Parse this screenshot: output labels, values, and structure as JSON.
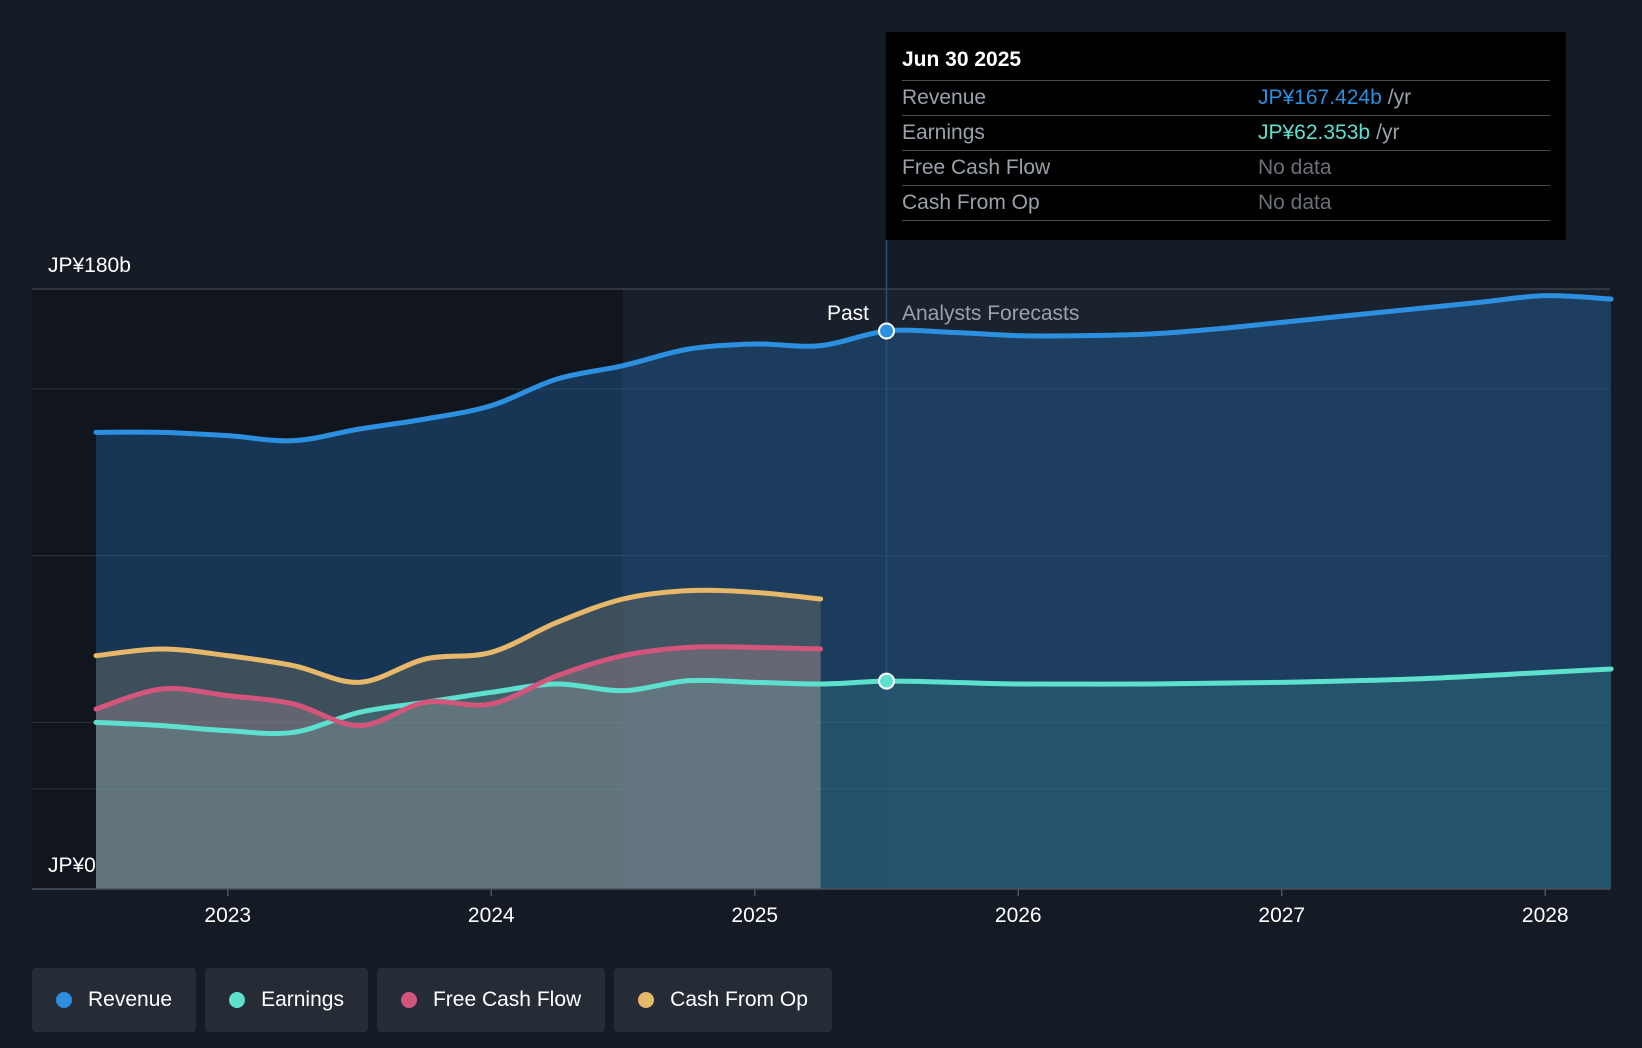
{
  "chart_data": {
    "type": "area",
    "x_range": [
      2022.5,
      2028.25
    ],
    "ylim": [
      0,
      180
    ],
    "y_axis_labels": {
      "top": "JP¥180b",
      "bottom": "JP¥0"
    },
    "x_ticks": [
      {
        "value": 2023,
        "label": "2023"
      },
      {
        "value": 2024,
        "label": "2024"
      },
      {
        "value": 2025,
        "label": "2025"
      },
      {
        "value": 2026,
        "label": "2026"
      },
      {
        "value": 2027,
        "label": "2027"
      },
      {
        "value": 2028,
        "label": "2028"
      }
    ],
    "gridlines": [
      30,
      50,
      100,
      150
    ],
    "past_label": "Past",
    "forecast_label": "Analysts Forecasts",
    "divider_x": 2025.5,
    "highlight_start_x": 2024.5,
    "series": [
      {
        "name": "Revenue",
        "color": "#2d8fe0",
        "values": [
          [
            2022.5,
            137
          ],
          [
            2022.75,
            137
          ],
          [
            2023.0,
            136
          ],
          [
            2023.25,
            134.5
          ],
          [
            2023.5,
            138
          ],
          [
            2023.75,
            141
          ],
          [
            2024.0,
            145
          ],
          [
            2024.25,
            153
          ],
          [
            2024.5,
            157
          ],
          [
            2024.75,
            162
          ],
          [
            2025.0,
            163.5
          ],
          [
            2025.25,
            163
          ],
          [
            2025.5,
            167.4
          ],
          [
            2025.75,
            167
          ],
          [
            2026.0,
            166
          ],
          [
            2026.25,
            166
          ],
          [
            2026.5,
            166.5
          ],
          [
            2026.75,
            168
          ],
          [
            2027.0,
            170
          ],
          [
            2027.25,
            172
          ],
          [
            2027.5,
            174
          ],
          [
            2027.75,
            176
          ],
          [
            2028.0,
            178
          ],
          [
            2028.25,
            177
          ]
        ]
      },
      {
        "name": "Earnings",
        "color": "#5ee0cf",
        "values": [
          [
            2022.5,
            50
          ],
          [
            2022.75,
            49
          ],
          [
            2023.0,
            47.5
          ],
          [
            2023.25,
            47
          ],
          [
            2023.5,
            53
          ],
          [
            2023.75,
            56
          ],
          [
            2024.0,
            59
          ],
          [
            2024.25,
            61.5
          ],
          [
            2024.5,
            59.5
          ],
          [
            2024.75,
            62.5
          ],
          [
            2025.0,
            62
          ],
          [
            2025.25,
            61.5
          ],
          [
            2025.5,
            62.35
          ],
          [
            2025.75,
            62
          ],
          [
            2026.0,
            61.5
          ],
          [
            2026.5,
            61.5
          ],
          [
            2027.0,
            62
          ],
          [
            2027.5,
            63
          ],
          [
            2028.0,
            65
          ],
          [
            2028.25,
            66
          ]
        ]
      },
      {
        "name": "Free Cash Flow",
        "color": "#d4557c",
        "values": [
          [
            2022.5,
            54
          ],
          [
            2022.75,
            60
          ],
          [
            2023.0,
            58
          ],
          [
            2023.25,
            55.5
          ],
          [
            2023.5,
            49
          ],
          [
            2023.75,
            56
          ],
          [
            2024.0,
            55.5
          ],
          [
            2024.25,
            64
          ],
          [
            2024.5,
            70
          ],
          [
            2024.75,
            72.5
          ],
          [
            2025.0,
            72.5
          ],
          [
            2025.25,
            72
          ]
        ]
      },
      {
        "name": "Cash From Op",
        "color": "#e8b86a",
        "values": [
          [
            2022.5,
            70
          ],
          [
            2022.75,
            72
          ],
          [
            2023.0,
            70
          ],
          [
            2023.25,
            67
          ],
          [
            2023.5,
            62
          ],
          [
            2023.75,
            69
          ],
          [
            2024.0,
            71
          ],
          [
            2024.25,
            80
          ],
          [
            2024.5,
            87
          ],
          [
            2024.75,
            89.5
          ],
          [
            2025.0,
            89
          ],
          [
            2025.25,
            87
          ]
        ]
      }
    ],
    "tooltip_x": 2025.5
  },
  "tooltip": {
    "date": "Jun 30 2025",
    "unit": "/yr",
    "rows": [
      {
        "name": "Revenue",
        "value": "JP¥167.424b",
        "color": "#2d8fe0"
      },
      {
        "name": "Earnings",
        "value": "JP¥62.353b",
        "color": "#5ee0cf"
      },
      {
        "name": "Free Cash Flow",
        "value": "No data"
      },
      {
        "name": "Cash From Op",
        "value": "No data"
      }
    ]
  },
  "legend": [
    {
      "label": "Revenue",
      "color": "#2d8fe0"
    },
    {
      "label": "Earnings",
      "color": "#5ee0cf"
    },
    {
      "label": "Free Cash Flow",
      "color": "#d4557c"
    },
    {
      "label": "Cash From Op",
      "color": "#e8b86a"
    }
  ]
}
